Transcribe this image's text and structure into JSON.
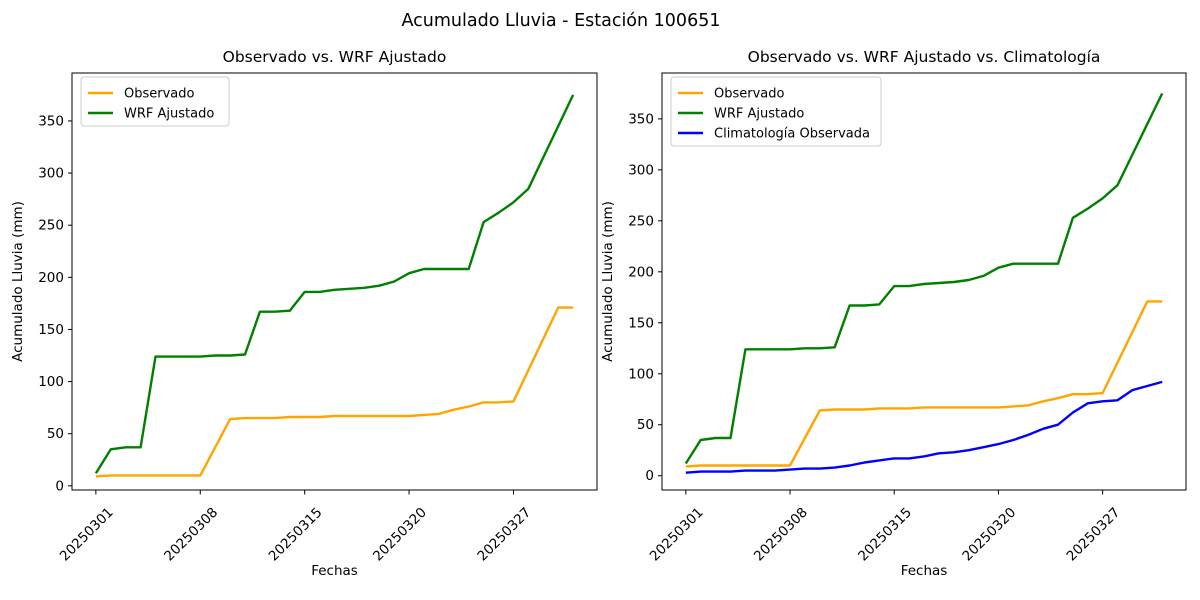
{
  "figure": {
    "suptitle": "Acumulado Lluvia - Estación 100651",
    "background": "#ffffff"
  },
  "colors": {
    "observado": "#FFA500",
    "wrf_ajustado": "#008000",
    "climatologia": "#0000FF",
    "spine": "#000000",
    "legend_border": "#cccccc",
    "text": "#000000"
  },
  "chart_data": [
    {
      "type": "line",
      "title": "Observado vs. WRF Ajustado",
      "xlabel": "Fechas",
      "ylabel": "Acumulado Lluvia (mm)",
      "grid": false,
      "legend_position": "upper-left",
      "xlim": [
        -1.6,
        33.6
      ],
      "ylim": [
        -4,
        396
      ],
      "yticks": [
        0,
        50,
        100,
        150,
        200,
        250,
        300,
        350
      ],
      "xticks": [
        {
          "pos": 0,
          "label": "20250301"
        },
        {
          "pos": 7,
          "label": "20250308"
        },
        {
          "pos": 14,
          "label": "20250315"
        },
        {
          "pos": 21,
          "label": "20250320"
        },
        {
          "pos": 28,
          "label": "20250327"
        }
      ],
      "series": [
        {
          "name": "Observado",
          "color": "#FFA500",
          "values": [
            9,
            10,
            10,
            10,
            10,
            10,
            10,
            10,
            37,
            64,
            65,
            65,
            65,
            66,
            66,
            66,
            67,
            67,
            67,
            67,
            67,
            67,
            68,
            69,
            73,
            76,
            80,
            80,
            81,
            111,
            141,
            171,
            171
          ]
        },
        {
          "name": "WRF Ajustado",
          "color": "#008000",
          "values": [
            12,
            35,
            37,
            37,
            124,
            124,
            124,
            124,
            125,
            125,
            126,
            167,
            167,
            168,
            186,
            186,
            188,
            189,
            190,
            192,
            196,
            204,
            208,
            208,
            208,
            208,
            253,
            262,
            272,
            285,
            315,
            345,
            375
          ]
        }
      ]
    },
    {
      "type": "line",
      "title": "Observado vs. WRF Ajustado vs. Climatología",
      "xlabel": "Fechas",
      "ylabel": "Acumulado Lluvia (mm)",
      "grid": false,
      "legend_position": "upper-left",
      "xlim": [
        -1.6,
        33.6
      ],
      "ylim": [
        -14,
        395
      ],
      "yticks": [
        0,
        50,
        100,
        150,
        200,
        250,
        300,
        350
      ],
      "xticks": [
        {
          "pos": 0,
          "label": "20250301"
        },
        {
          "pos": 7,
          "label": "20250308"
        },
        {
          "pos": 14,
          "label": "20250315"
        },
        {
          "pos": 21,
          "label": "20250320"
        },
        {
          "pos": 28,
          "label": "20250327"
        }
      ],
      "series": [
        {
          "name": "Observado",
          "color": "#FFA500",
          "values": [
            9,
            10,
            10,
            10,
            10,
            10,
            10,
            10,
            37,
            64,
            65,
            65,
            65,
            66,
            66,
            66,
            67,
            67,
            67,
            67,
            67,
            67,
            68,
            69,
            73,
            76,
            80,
            80,
            81,
            111,
            141,
            171,
            171
          ]
        },
        {
          "name": "WRF Ajustado",
          "color": "#008000",
          "values": [
            12,
            35,
            37,
            37,
            124,
            124,
            124,
            124,
            125,
            125,
            126,
            167,
            167,
            168,
            186,
            186,
            188,
            189,
            190,
            192,
            196,
            204,
            208,
            208,
            208,
            208,
            253,
            262,
            272,
            285,
            315,
            345,
            375
          ]
        },
        {
          "name": "Climatología Observada",
          "color": "#0000FF",
          "values": [
            3,
            4,
            4,
            4,
            5,
            5,
            5,
            6,
            7,
            7,
            8,
            10,
            13,
            15,
            17,
            17,
            19,
            22,
            23,
            25,
            28,
            31,
            35,
            40,
            46,
            50,
            62,
            71,
            73,
            74,
            84,
            88,
            92
          ]
        }
      ]
    }
  ]
}
